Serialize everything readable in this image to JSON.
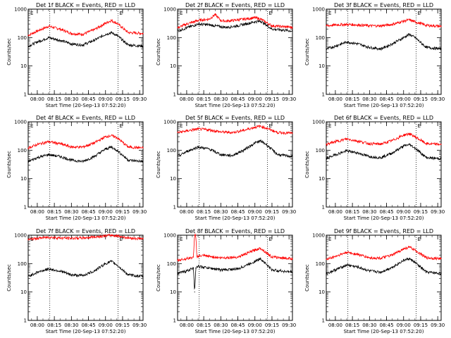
{
  "figure": {
    "background": "#ffffff",
    "events_color": "#000000",
    "lld_color": "#ff0000",
    "xlabel": "Start Time (20-Sep-13 07:52:20)",
    "ylabel": "Counts/sec"
  },
  "chart_data": [
    {
      "type": "line",
      "title": "Det 1f BLACK = Events, RED = LLD",
      "xlabel": "Start Time (20-Sep-13 07:52:20)",
      "ylabel": "Counts/sec",
      "x_ticks": [
        "08:00",
        "08:15",
        "08:30",
        "08:45",
        "09:00",
        "09:15",
        "09:30"
      ],
      "y_ticks": [
        "1",
        "10",
        "100",
        "1000"
      ],
      "yscale": "log",
      "ylim": [
        1,
        1000
      ],
      "xlim": [
        "07:52",
        "09:33"
      ],
      "vlines": [
        "08:11",
        "09:11"
      ],
      "marker": "E",
      "x": [
        "07:52",
        "08:00",
        "08:10",
        "08:20",
        "08:30",
        "08:40",
        "08:50",
        "09:00",
        "09:05",
        "09:10",
        "09:20",
        "09:33"
      ],
      "series": [
        {
          "values": [
            120,
            170,
            250,
            200,
            140,
            130,
            190,
            320,
            400,
            320,
            150,
            140
          ]
        },
        {
          "values": [
            50,
            70,
            100,
            80,
            60,
            55,
            80,
            130,
            150,
            120,
            55,
            50
          ]
        }
      ]
    },
    {
      "type": "line",
      "title": "Det 2f BLACK = Events, RED = LLD",
      "xlabel": "Start Time (20-Sep-13 07:52:20)",
      "ylabel": "Counts/sec",
      "x_ticks": [
        "08:00",
        "08:15",
        "08:30",
        "08:45",
        "09:00",
        "09:15",
        "09:30"
      ],
      "y_ticks": [
        "1",
        "10",
        "100",
        "1000"
      ],
      "yscale": "log",
      "ylim": [
        1,
        1000
      ],
      "xlim": [
        "07:52",
        "09:33"
      ],
      "vlines": [
        "08:11",
        "09:11"
      ],
      "marker": "E",
      "x": [
        "07:52",
        "08:00",
        "08:10",
        "08:20",
        "08:25",
        "08:30",
        "08:35",
        "08:45",
        "09:00",
        "09:05",
        "09:15",
        "09:33"
      ],
      "series": [
        {
          "values": [
            220,
            300,
            400,
            450,
            650,
            400,
            380,
            420,
            500,
            450,
            260,
            230
          ]
        },
        {
          "values": [
            170,
            220,
            300,
            280,
            260,
            240,
            230,
            260,
            360,
            380,
            200,
            170
          ]
        }
      ]
    },
    {
      "type": "line",
      "title": "Det 3f BLACK = Events, RED = LLD",
      "xlabel": "Start Time (20-Sep-13 07:52:20)",
      "ylabel": "Counts/sec",
      "x_ticks": [
        "08:00",
        "08:15",
        "08:30",
        "08:45",
        "09:00",
        "09:15",
        "09:30"
      ],
      "y_ticks": [
        "1",
        "10",
        "100",
        "1000"
      ],
      "yscale": "log",
      "ylim": [
        1,
        1000
      ],
      "xlim": [
        "07:52",
        "09:33"
      ],
      "vlines": [
        "08:11",
        "09:11"
      ],
      "marker": "E",
      "x": [
        "07:52",
        "08:00",
        "08:10",
        "08:20",
        "08:30",
        "08:40",
        "08:50",
        "09:00",
        "09:05",
        "09:10",
        "09:20",
        "09:33"
      ],
      "series": [
        {
          "values": [
            260,
            280,
            290,
            280,
            260,
            260,
            290,
            380,
            420,
            360,
            270,
            250
          ]
        },
        {
          "values": [
            40,
            50,
            70,
            60,
            45,
            40,
            60,
            100,
            130,
            100,
            45,
            40
          ]
        }
      ]
    },
    {
      "type": "line",
      "title": "Det 4f BLACK = Events, RED = LLD",
      "xlabel": "Start Time (20-Sep-13 07:52:20)",
      "ylabel": "Counts/sec",
      "x_ticks": [
        "08:00",
        "08:15",
        "08:30",
        "08:45",
        "09:00",
        "09:15",
        "09:30"
      ],
      "y_ticks": [
        "1",
        "10",
        "100",
        "1000"
      ],
      "yscale": "log",
      "ylim": [
        1,
        1000
      ],
      "xlim": [
        "07:52",
        "09:33"
      ],
      "vlines": [
        "08:11",
        "09:11"
      ],
      "marker": "E",
      "x": [
        "07:52",
        "08:00",
        "08:10",
        "08:20",
        "08:30",
        "08:40",
        "08:50",
        "09:00",
        "09:05",
        "09:10",
        "09:20",
        "09:33"
      ],
      "series": [
        {
          "values": [
            120,
            160,
            200,
            170,
            130,
            130,
            180,
            300,
            330,
            280,
            130,
            120
          ]
        },
        {
          "values": [
            40,
            55,
            70,
            60,
            45,
            40,
            60,
            110,
            130,
            100,
            45,
            40
          ]
        }
      ]
    },
    {
      "type": "line",
      "title": "Det 5f BLACK = Events, RED = LLD",
      "xlabel": "Start Time (20-Sep-13 07:52:20)",
      "ylabel": "Counts/sec",
      "x_ticks": [
        "08:00",
        "08:15",
        "08:30",
        "08:45",
        "09:00",
        "09:15",
        "09:30"
      ],
      "y_ticks": [
        "1",
        "10",
        "100",
        "1000"
      ],
      "yscale": "log",
      "ylim": [
        1,
        1000
      ],
      "xlim": [
        "07:52",
        "09:33"
      ],
      "vlines": [
        "08:11",
        "09:11"
      ],
      "marker": "E",
      "x": [
        "07:52",
        "08:00",
        "08:10",
        "08:20",
        "08:30",
        "08:40",
        "08:50",
        "09:00",
        "09:05",
        "09:10",
        "09:20",
        "09:33"
      ],
      "series": [
        {
          "values": [
            420,
            480,
            560,
            520,
            440,
            420,
            500,
            650,
            700,
            600,
            420,
            400
          ]
        },
        {
          "values": [
            60,
            90,
            130,
            110,
            70,
            65,
            100,
            180,
            210,
            160,
            70,
            60
          ]
        }
      ]
    },
    {
      "type": "line",
      "title": "Det 6f BLACK = Events, RED = LLD",
      "xlabel": "Start Time (20-Sep-13 07:52:20)",
      "ylabel": "Counts/sec",
      "x_ticks": [
        "08:00",
        "08:15",
        "08:30",
        "08:45",
        "09:00",
        "09:15",
        "09:30"
      ],
      "y_ticks": [
        "1",
        "10",
        "100",
        "1000"
      ],
      "yscale": "log",
      "ylim": [
        1,
        1000
      ],
      "xlim": [
        "07:52",
        "09:33"
      ],
      "vlines": [
        "08:11",
        "09:11"
      ],
      "marker": "E",
      "x": [
        "07:52",
        "08:00",
        "08:10",
        "08:20",
        "08:30",
        "08:40",
        "08:50",
        "09:00",
        "09:05",
        "09:10",
        "09:20",
        "09:33"
      ],
      "series": [
        {
          "values": [
            160,
            200,
            250,
            210,
            170,
            165,
            220,
            340,
            380,
            300,
            170,
            160
          ]
        },
        {
          "values": [
            50,
            70,
            95,
            80,
            60,
            55,
            80,
            140,
            160,
            120,
            55,
            50
          ]
        }
      ]
    },
    {
      "type": "line",
      "title": "Det 7f BLACK = Events, RED = LLD",
      "xlabel": "Start Time (20-Sep-13 07:52:20)",
      "ylabel": "Counts/sec",
      "x_ticks": [
        "08:00",
        "08:15",
        "08:30",
        "08:45",
        "09:00",
        "09:15",
        "09:30"
      ],
      "y_ticks": [
        "1",
        "10",
        "100",
        "1000"
      ],
      "yscale": "log",
      "ylim": [
        1,
        1000
      ],
      "xlim": [
        "07:52",
        "09:33"
      ],
      "vlines": [
        "08:11",
        "09:11"
      ],
      "marker": "E",
      "x": [
        "07:52",
        "08:00",
        "08:10",
        "08:20",
        "08:30",
        "08:40",
        "08:50",
        "09:00",
        "09:05",
        "09:10",
        "09:20",
        "09:33"
      ],
      "series": [
        {
          "values": [
            700,
            780,
            850,
            800,
            780,
            800,
            870,
            950,
            1000,
            950,
            800,
            750
          ]
        },
        {
          "values": [
            35,
            50,
            65,
            55,
            40,
            38,
            55,
            100,
            120,
            90,
            40,
            35
          ]
        }
      ]
    },
    {
      "type": "line",
      "title": "Det 8f BLACK = Events, RED = LLD",
      "xlabel": "Start Time (20-Sep-13 07:52:20)",
      "ylabel": "Counts/sec",
      "x_ticks": [
        "08:00",
        "08:15",
        "08:30",
        "08:45",
        "09:00",
        "09:15",
        "09:30"
      ],
      "y_ticks": [
        "1",
        "10",
        "100",
        "1000"
      ],
      "yscale": "log",
      "ylim": [
        1,
        1000
      ],
      "xlim": [
        "07:52",
        "09:33"
      ],
      "vlines": [
        "08:11",
        "09:11"
      ],
      "marker": "E",
      "x": [
        "07:52",
        "08:00",
        "08:06",
        "08:07",
        "08:08",
        "08:09",
        "08:15",
        "08:30",
        "08:45",
        "09:00",
        "09:05",
        "09:15",
        "09:33"
      ],
      "series": [
        {
          "values": [
            130,
            150,
            170,
            1000,
            1000,
            180,
            190,
            160,
            170,
            300,
            350,
            170,
            150
          ]
        },
        {
          "values": [
            45,
            55,
            70,
            10,
            70,
            80,
            75,
            60,
            65,
            120,
            150,
            60,
            50
          ]
        }
      ]
    },
    {
      "type": "line",
      "title": "Det 9f BLACK = Events, RED = LLD",
      "xlabel": "Start Time (20-Sep-13 07:52:20)",
      "ylabel": "Counts/sec",
      "x_ticks": [
        "08:00",
        "08:15",
        "08:30",
        "08:45",
        "09:00",
        "09:15",
        "09:30"
      ],
      "y_ticks": [
        "1",
        "10",
        "100",
        "1000"
      ],
      "yscale": "log",
      "ylim": [
        1,
        1000
      ],
      "xlim": [
        "07:52",
        "09:33"
      ],
      "vlines": [
        "08:11",
        "09:11"
      ],
      "marker": "E",
      "x": [
        "07:52",
        "08:00",
        "08:10",
        "08:20",
        "08:30",
        "08:40",
        "08:50",
        "09:00",
        "09:05",
        "09:10",
        "09:20",
        "09:33"
      ],
      "series": [
        {
          "values": [
            140,
            180,
            250,
            210,
            160,
            155,
            200,
            330,
            380,
            300,
            160,
            150
          ]
        },
        {
          "values": [
            45,
            60,
            90,
            75,
            55,
            50,
            75,
            130,
            150,
            110,
            50,
            45
          ]
        }
      ]
    }
  ]
}
